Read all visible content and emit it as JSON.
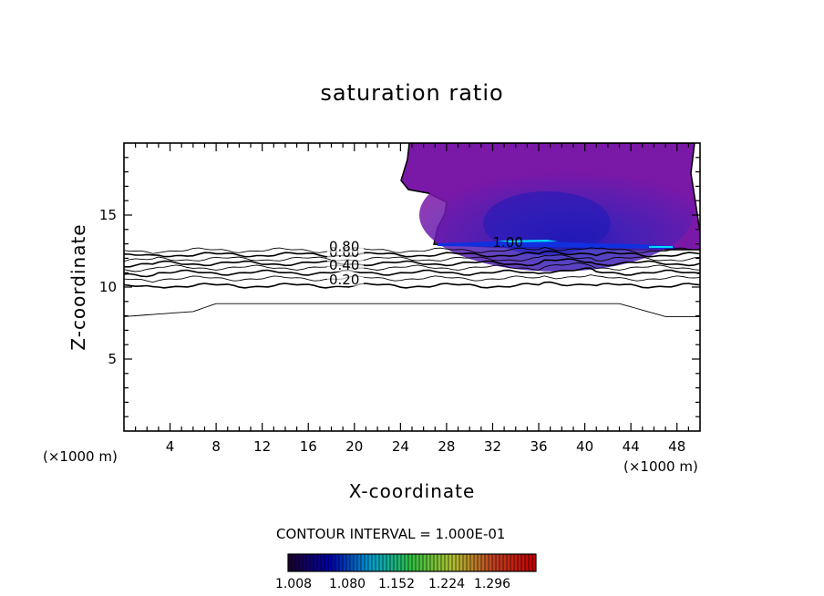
{
  "chart_data": {
    "type": "contour",
    "title": "saturation ratio",
    "xlabel": "X-coordinate",
    "ylabel": "Z-coordinate",
    "x_unit_label": "(×1000 m)",
    "z_unit_label": "(×1000 m)",
    "xlim": [
      0,
      50
    ],
    "ylim": [
      0,
      20
    ],
    "x_ticks": [
      4,
      8,
      12,
      16,
      20,
      24,
      28,
      32,
      36,
      40,
      44,
      48
    ],
    "y_ticks": [
      5,
      10,
      15
    ],
    "contour_interval_text": "CONTOUR INTERVAL = 1.000E-01",
    "contour_labels": [
      {
        "text": "0.20",
        "x": 17.8,
        "z": 10.2
      },
      {
        "text": "0.40",
        "x": 17.8,
        "z": 11.2
      },
      {
        "text": "0.60",
        "x": 17.8,
        "z": 12.1
      },
      {
        "text": "0.80",
        "x": 17.8,
        "z": 12.5
      },
      {
        "text": "1.00",
        "x": 32,
        "z": 12.8
      }
    ],
    "colorbar": {
      "ticks": [
        "1.008",
        "1.080",
        "1.152",
        "1.224",
        "1.296"
      ],
      "colors": [
        "#1a0033",
        "#0000aa",
        "#00a0d0",
        "#30c040",
        "#b0c030",
        "#c04020",
        "#c00000"
      ]
    },
    "supersaturated_region": {
      "fill_color": "#7a18a8",
      "core_color": "#1c1ab8",
      "highlight_color": "#00d8ff"
    }
  }
}
